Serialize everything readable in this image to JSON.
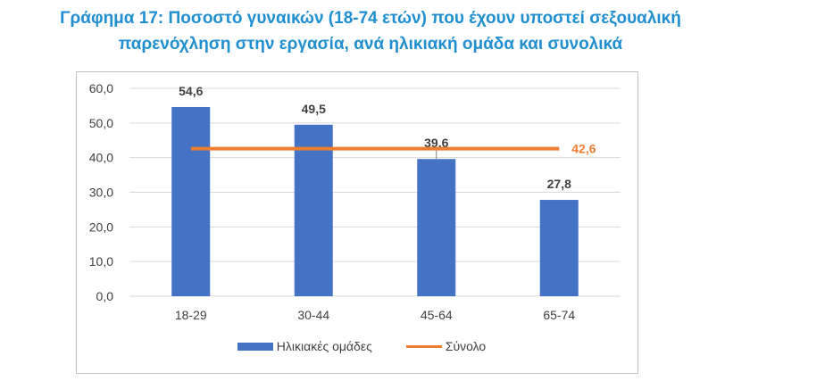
{
  "title_lines": [
    "Γράφημα 17: Ποσοστό γυναικών (18-74 ετών) που έχουν υποστεί σεξουαλική",
    "παρενόχληση στην εργασία, ανά ηλικιακή ομάδα και συνολικά"
  ],
  "colors": {
    "title": "#1f8fd0",
    "bar": "#4472c4",
    "line": "#ed7d31",
    "grid": "#d9d9d9",
    "axis_text": "#404040",
    "bar_label": "#404040"
  },
  "chart_data": {
    "type": "bar",
    "title": "Γράφημα 17: Ποσοστό γυναικών (18-74 ετών) που έχουν υποστεί σεξουαλική παρενόχληση στην εργασία, ανά ηλικιακή ομάδα και συνολικά",
    "categories": [
      "18-29",
      "30-44",
      "45-64",
      "65-74"
    ],
    "series": [
      {
        "name": "Ηλικιακές ομάδες",
        "type": "bar",
        "values": [
          54.6,
          49.5,
          39.6,
          27.8
        ],
        "labels": [
          "54,6",
          "49,5",
          "39,6",
          "27,8"
        ]
      },
      {
        "name": "Σύνολο",
        "type": "line",
        "values": [
          42.6,
          42.6,
          42.6,
          42.6
        ],
        "end_label": "42,6"
      }
    ],
    "ylim": [
      0,
      60
    ],
    "yticks": [
      0,
      10,
      20,
      30,
      40,
      50,
      60
    ],
    "ytick_labels": [
      "0,0",
      "10,0",
      "20,0",
      "30,0",
      "40,0",
      "50,0",
      "60,0"
    ],
    "grid": true,
    "legend_position": "bottom"
  }
}
